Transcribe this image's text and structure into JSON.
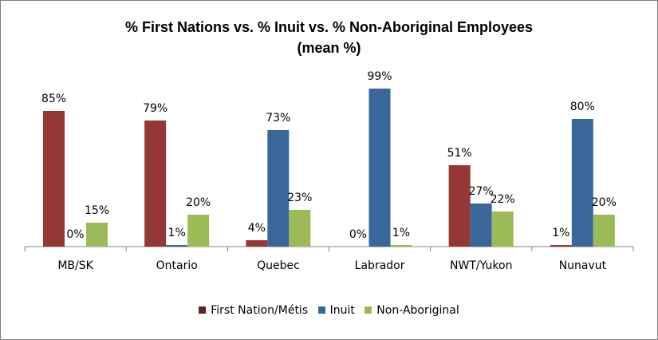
{
  "chart_data": {
    "type": "bar",
    "title_line1": "% First Nations vs. % Inuit vs. % Non-Aboriginal Employees",
    "title_line2": "(mean %)",
    "categories": [
      "MB/SK",
      "Ontario",
      "Quebec",
      "Labrador",
      "NWT/Yukon",
      "Nunavut"
    ],
    "series": [
      {
        "name": "First Nation/Métis",
        "color": "#953735",
        "values": [
          85,
          79,
          4,
          0,
          51,
          1
        ],
        "labels": [
          "85%",
          "79%",
          "4%",
          "0%",
          "51%",
          "1%"
        ]
      },
      {
        "name": "Inuit",
        "color": "#3a679a",
        "values": [
          0,
          1,
          73,
          99,
          27,
          80
        ],
        "labels": [
          "0%",
          "1%",
          "73%",
          "99%",
          "27%",
          "80%"
        ]
      },
      {
        "name": "Non-Aboriginal",
        "color": "#9bbb59",
        "values": [
          15,
          20,
          23,
          1,
          22,
          20
        ],
        "labels": [
          "15%",
          "20%",
          "23%",
          "1%",
          "22%",
          "20%"
        ]
      }
    ],
    "ylim": [
      0,
      100
    ],
    "grid": false,
    "legend_position": "bottom"
  }
}
